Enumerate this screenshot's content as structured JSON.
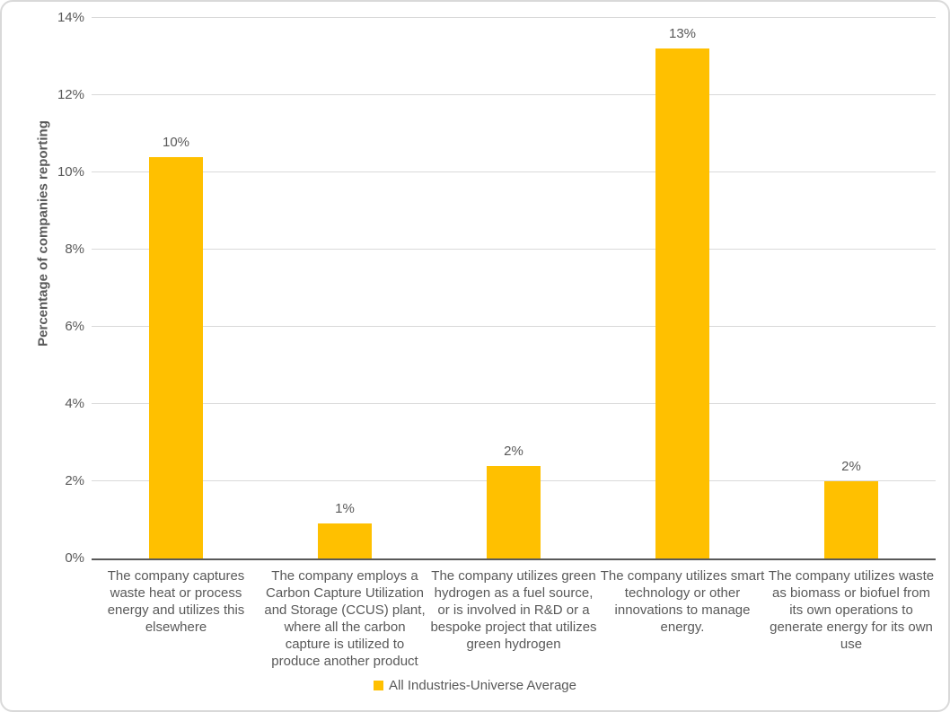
{
  "chart_data": {
    "type": "bar",
    "title": "",
    "xlabel": "",
    "ylabel": "Percentage of companies reporting",
    "ylim": [
      0,
      14
    ],
    "grid": true,
    "legend_position": "bottom",
    "yticks": [
      {
        "value": 0,
        "label": "0%"
      },
      {
        "value": 2,
        "label": "2%"
      },
      {
        "value": 4,
        "label": "4%"
      },
      {
        "value": 6,
        "label": "6%"
      },
      {
        "value": 8,
        "label": "8%"
      },
      {
        "value": 10,
        "label": "10%"
      },
      {
        "value": 12,
        "label": "12%"
      },
      {
        "value": 14,
        "label": "14%"
      }
    ],
    "categories": [
      "The company captures waste heat or process energy and utilizes this elsewhere",
      "The company employs a Carbon Capture Utilization and Storage (CCUS) plant, where all the carbon capture is utilized to produce another product",
      "The company utilizes green hydrogen as a fuel source, or is involved in R&D or a bespoke project that utilizes green hydrogen",
      "The company utilizes smart technology or other innovations to manage energy.",
      "The company utilizes waste as biomass or biofuel from its own operations to generate energy for its own use"
    ],
    "series": [
      {
        "name": "All Industries-Universe Average",
        "values": [
          10.4,
          0.9,
          2.4,
          13.2,
          2.0
        ],
        "value_labels": [
          "10%",
          "1%",
          "2%",
          "13%",
          "2%"
        ]
      }
    ]
  },
  "colors": {
    "bar": "#FFC000",
    "gridline": "#D9D9D9",
    "axis_line": "#595959",
    "text": "#595959",
    "frame_border": "#D9D9D9",
    "background": "#FFFFFF"
  }
}
